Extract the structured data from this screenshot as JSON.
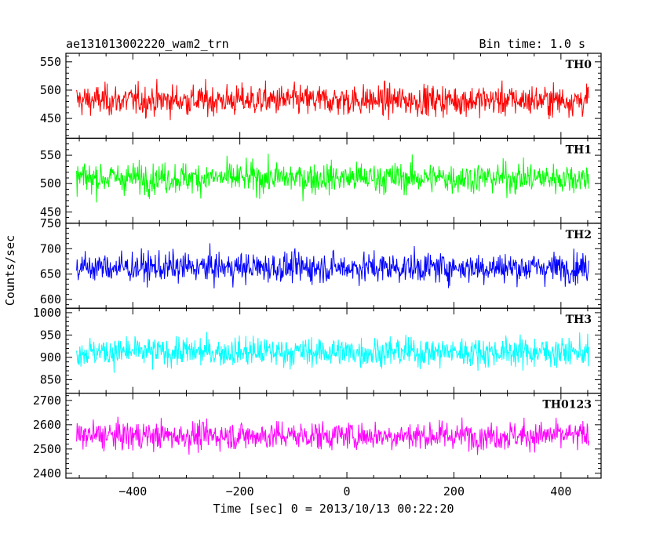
{
  "header": {
    "title": "ae131013002220_wam2_trn",
    "bin_time": "Bin time: 1.0 s"
  },
  "chart_data": {
    "type": "line",
    "title": "ae131013002220_wam2_trn",
    "subtitle": "Bin time: 1.0 s",
    "xlabel": "Time [sec] 0 = 2013/10/13 00:22:20",
    "ylabel": "Counts/sec",
    "xlim": [
      -525,
      475
    ],
    "x_range_data": [
      -505,
      452
    ],
    "x_ticks": [
      -400,
      -200,
      0,
      200,
      400
    ],
    "x_tick_labels": [
      "−400",
      "−200",
      "0",
      "200",
      "400"
    ],
    "grid": false,
    "panels": [
      {
        "label": "TH0",
        "color": "#ff0000",
        "ylim": [
          415,
          565
        ],
        "yticks": [
          450,
          500,
          550
        ],
        "ytick_labels": [
          "450",
          "500",
          "550"
        ],
        "mean": 482,
        "spread": 35,
        "min_shown": 415,
        "max_shown": 565
      },
      {
        "label": "TH1",
        "color": "#00ff00",
        "ylim": [
          430,
          580
        ],
        "yticks": [
          450,
          500,
          550
        ],
        "ytick_labels": [
          "450",
          "500",
          "550"
        ],
        "mean": 510,
        "spread": 35,
        "min_shown": 440,
        "max_shown": 580
      },
      {
        "label": "TH2",
        "color": "#0000ff",
        "ylim": [
          583,
          750
        ],
        "yticks": [
          600,
          650,
          700,
          750
        ],
        "ytick_labels": [
          "600",
          "650",
          "700",
          "750"
        ],
        "mean": 663,
        "spread": 38,
        "min_shown": 583,
        "max_shown": 750
      },
      {
        "label": "TH3",
        "color": "#00ffff",
        "ylim": [
          820,
          1010
        ],
        "yticks": [
          850,
          900,
          950,
          1000
        ],
        "ytick_labels": [
          "850",
          "900",
          "950",
          "1000"
        ],
        "mean": 912,
        "spread": 42,
        "min_shown": 820,
        "max_shown": 1010
      },
      {
        "label": "TH0123",
        "color": "#ff00ff",
        "ylim": [
          2380,
          2730
        ],
        "yticks": [
          2400,
          2500,
          2600,
          2700
        ],
        "ytick_labels": [
          "2400",
          "2500",
          "2600",
          "2700"
        ],
        "mean": 2555,
        "spread": 75,
        "min_shown": 2380,
        "max_shown": 2720
      }
    ]
  }
}
